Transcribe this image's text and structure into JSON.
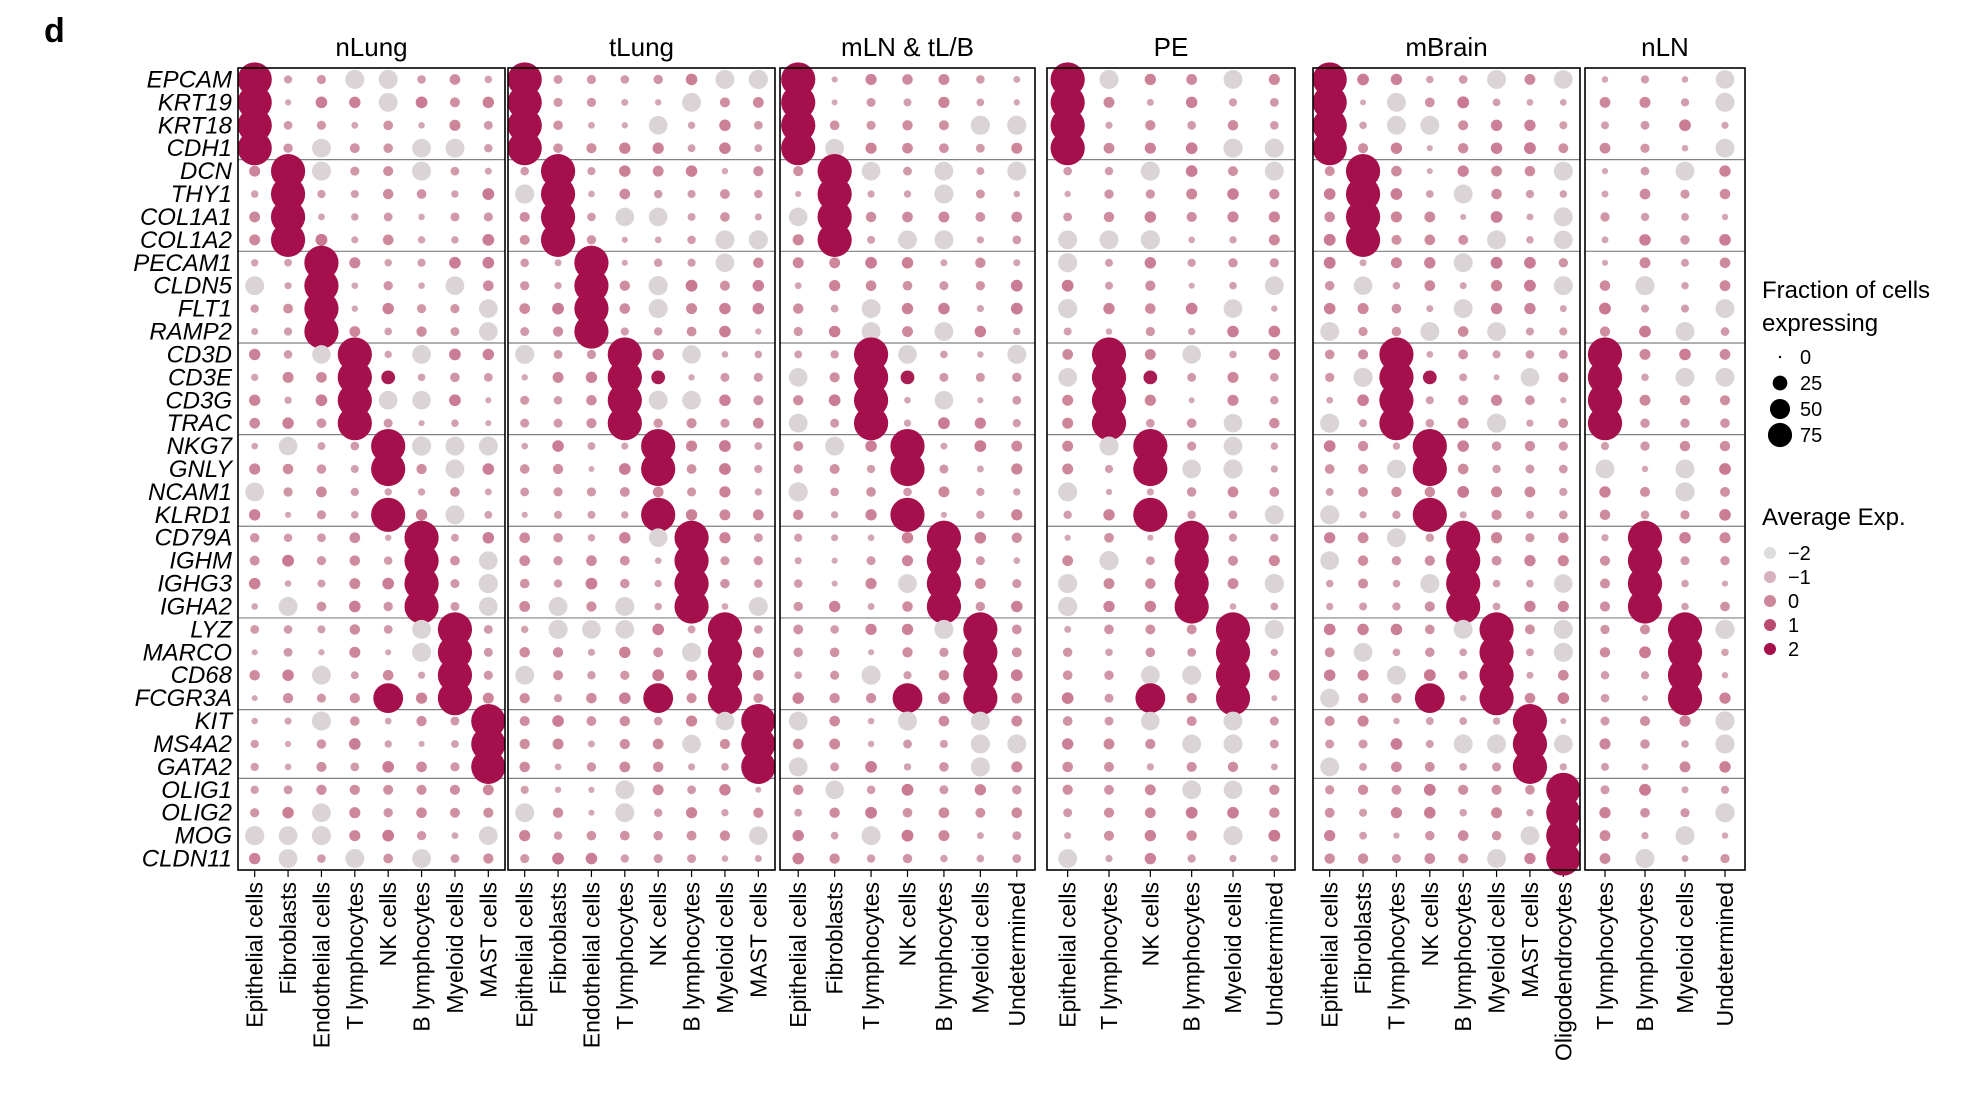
{
  "panel_label": "d",
  "chart_data": {
    "type": "dotplot",
    "genes": [
      "EPCAM",
      "KRT19",
      "KRT18",
      "CDH1",
      "DCN",
      "THY1",
      "COL1A1",
      "COL1A2",
      "PECAM1",
      "CLDN5",
      "FLT1",
      "RAMP2",
      "CD3D",
      "CD3E",
      "CD3G",
      "TRAC",
      "NKG7",
      "GNLY",
      "NCAM1",
      "KLRD1",
      "CD79A",
      "IGHM",
      "IGHG3",
      "IGHA2",
      "LYZ",
      "MARCO",
      "CD68",
      "FCGR3A",
      "KIT",
      "MS4A2",
      "GATA2",
      "OLIG1",
      "OLIG2",
      "MOG",
      "CLDN11"
    ],
    "gene_group_sizes": [
      4,
      4,
      4,
      4,
      4,
      4,
      4,
      3,
      4
    ],
    "facets": [
      {
        "title": "nLung",
        "cell_types": [
          "Epithelial cells",
          "Fibroblasts",
          "Endothelial cells",
          "T lymphocytes",
          "NK cells",
          "B lymphocytes",
          "Myeloid cells",
          "MAST cells"
        ]
      },
      {
        "title": "tLung",
        "cell_types": [
          "Epithelial cells",
          "Fibroblasts",
          "Endothelial cells",
          "T lymphocytes",
          "NK cells",
          "B lymphocytes",
          "Myeloid cells",
          "MAST cells"
        ]
      },
      {
        "title": "mLN & tL/B",
        "cell_types": [
          "Epithelial cells",
          "Fibroblasts",
          "T lymphocytes",
          "NK cells",
          "B lymphocytes",
          "Myeloid cells",
          "Undetermined"
        ]
      },
      {
        "title": "PE",
        "cell_types": [
          "Epithelial cells",
          "T lymphocytes",
          "NK cells",
          "B lymphocytes",
          "Myeloid cells",
          "Undetermined"
        ]
      },
      {
        "title": "mBrain",
        "cell_types": [
          "Epithelial cells",
          "Fibroblasts",
          "T lymphocytes",
          "NK cells",
          "B lymphocytes",
          "Myeloid cells",
          "MAST cells",
          "Oligodendrocytes"
        ]
      },
      {
        "title": "nLN",
        "cell_types": [
          "T lymphocytes",
          "B lymphocytes",
          "Myeloid cells",
          "Undetermined"
        ]
      }
    ],
    "cell_type_markers": {
      "Epithelial cells": [
        0,
        1,
        2,
        3
      ],
      "Fibroblasts": [
        4,
        5,
        6,
        7
      ],
      "Endothelial cells": [
        8,
        9,
        10,
        11
      ],
      "T lymphocytes": [
        12,
        13,
        14,
        15
      ],
      "NK cells": [
        16,
        17,
        19,
        13,
        27
      ],
      "B lymphocytes": [
        20,
        21,
        22,
        23
      ],
      "Myeloid cells": [
        24,
        25,
        26,
        27
      ],
      "MAST cells": [
        28,
        29,
        30
      ],
      "Oligodendrocytes": [
        31,
        32,
        33,
        34
      ]
    },
    "size_scale": {
      "title": "Fraction of cells expressing",
      "breaks": [
        0,
        25,
        50,
        75
      ]
    },
    "color_scale": {
      "title": "Average Exp.",
      "breaks": [
        "−2",
        "−1",
        "0",
        "1",
        "2"
      ],
      "low": "#dcdcdc",
      "high": "#a50f4b"
    }
  },
  "colors": {
    "high": "#a50f4b",
    "low": "#dcdcdc",
    "frame": "#000000",
    "separator": "#808080"
  }
}
